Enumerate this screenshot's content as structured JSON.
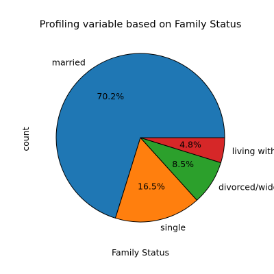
{
  "chart_data": {
    "type": "pie",
    "title": "Profiling variable based on Family Status",
    "xlabel": "Family Status",
    "ylabel": "count",
    "start_angle_deg": 0,
    "direction": "counterclockwise",
    "slices": [
      {
        "label": "married",
        "value": 70.2,
        "pct_label": "70.2%",
        "color": "#1f77b4"
      },
      {
        "label": "single",
        "value": 16.5,
        "pct_label": "16.5%",
        "color": "#ff7f0e"
      },
      {
        "label": "divorced/widowed",
        "value": 8.5,
        "pct_label": "8.5%",
        "color": "#2ca02c"
      },
      {
        "label": "living with partner",
        "value": 4.8,
        "pct_label": "4.8%",
        "color": "#d62728"
      }
    ]
  }
}
